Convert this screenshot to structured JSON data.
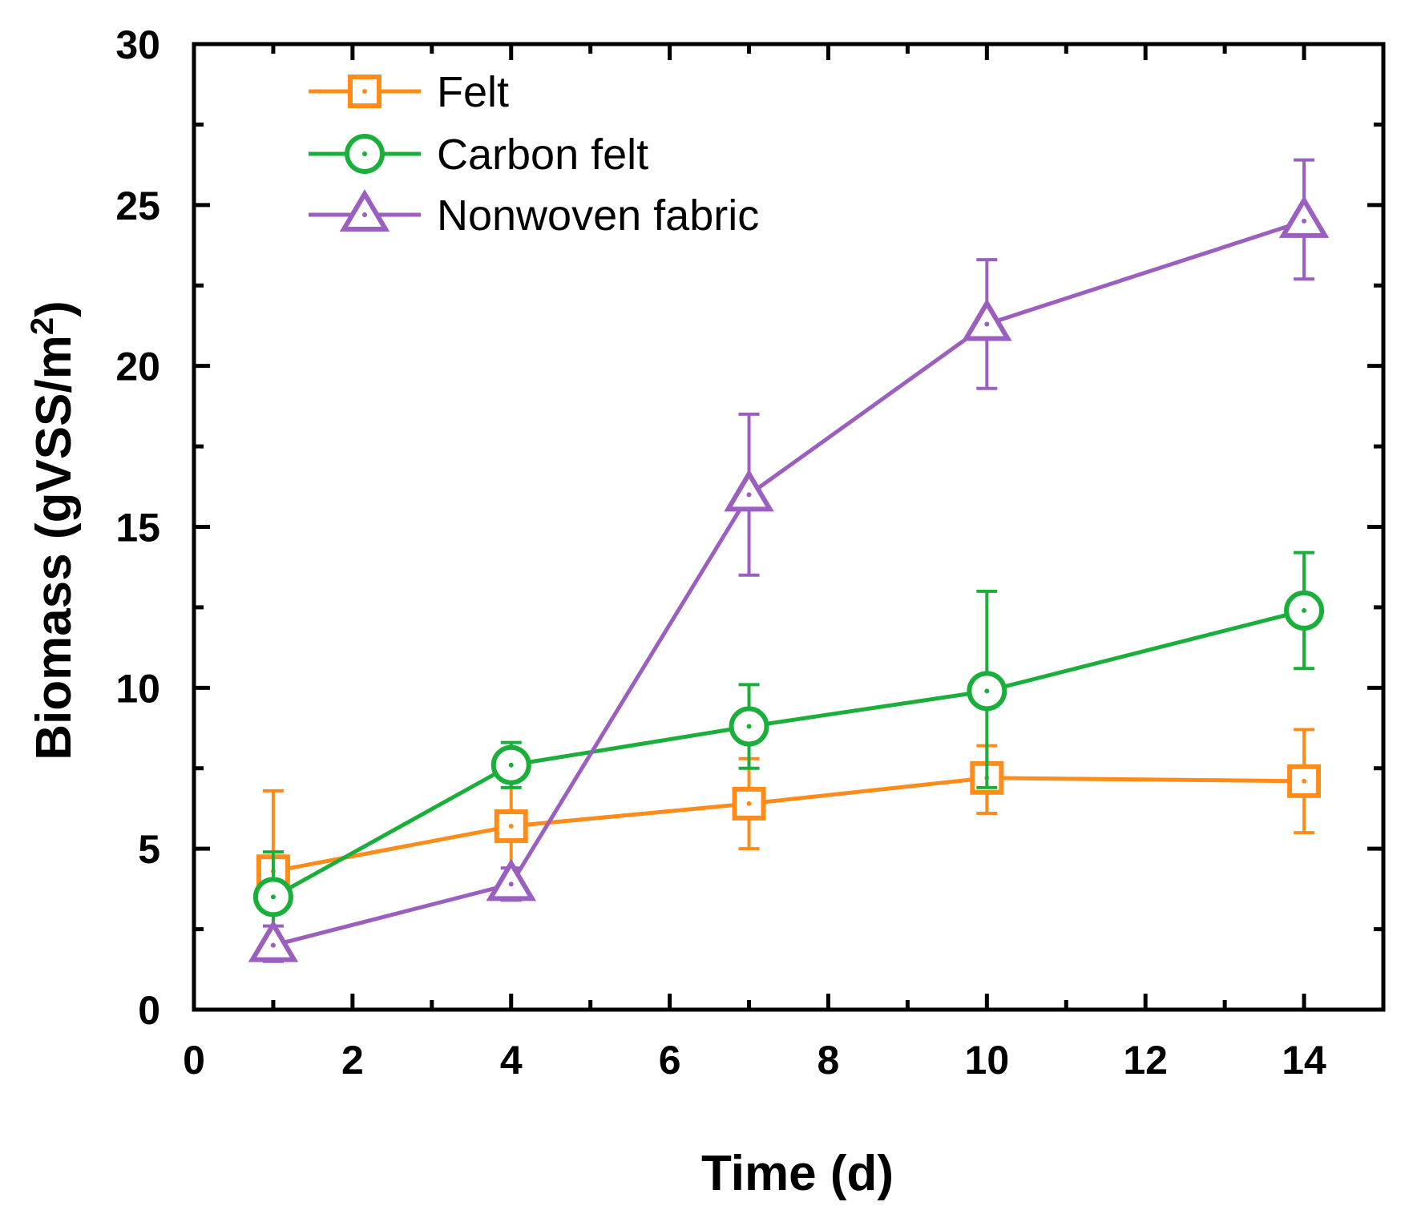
{
  "chart_data": {
    "type": "line",
    "title": "",
    "xlabel": "Time (d)",
    "ylabel_main": "Biomass (gVSS/m",
    "ylabel_sup": "2",
    "ylabel_close": ")",
    "xlim": [
      0,
      15
    ],
    "ylim": [
      0,
      30
    ],
    "x_major_ticks": [
      0,
      2,
      4,
      6,
      8,
      10,
      12,
      14
    ],
    "x_tick_labels": [
      "0",
      "2",
      "4",
      "6",
      "8",
      "10",
      "12",
      "14"
    ],
    "x_minor_ticks": [
      1,
      3,
      5,
      7,
      9,
      11,
      13
    ],
    "y_major_ticks": [
      0,
      5,
      10,
      15,
      20,
      25,
      30
    ],
    "y_tick_labels": [
      "0",
      "5",
      "10",
      "15",
      "20",
      "25",
      "30"
    ],
    "y_minor_ticks": [
      2.5,
      7.5,
      12.5,
      17.5,
      22.5,
      27.5
    ],
    "grid": false,
    "legend_position": "top-left",
    "x": [
      1,
      4,
      7,
      10,
      14
    ],
    "series": [
      {
        "name": "Felt",
        "marker": "square",
        "color": "#FF8C1A",
        "values": [
          4.3,
          5.7,
          6.4,
          7.2,
          7.1
        ],
        "err_upper": [
          6.8,
          7.5,
          7.8,
          8.2,
          8.7
        ],
        "err_lower": [
          1.8,
          3.9,
          5.0,
          6.1,
          5.5
        ]
      },
      {
        "name": "Carbon felt",
        "marker": "circle",
        "color": "#1AAF3A",
        "values": [
          3.5,
          7.6,
          8.8,
          9.9,
          12.4
        ],
        "err_upper": [
          4.9,
          8.3,
          10.1,
          13.0,
          14.2
        ],
        "err_lower": [
          2.1,
          6.9,
          7.5,
          6.9,
          10.6
        ]
      },
      {
        "name": "Nonwoven fabric",
        "marker": "triangle",
        "color": "#9B5FC0",
        "values": [
          2.0,
          3.9,
          16.0,
          21.3,
          24.5
        ],
        "err_upper": [
          2.6,
          4.4,
          18.5,
          23.3,
          26.4
        ],
        "err_lower": [
          1.5,
          3.4,
          13.5,
          19.3,
          22.7
        ]
      }
    ]
  }
}
